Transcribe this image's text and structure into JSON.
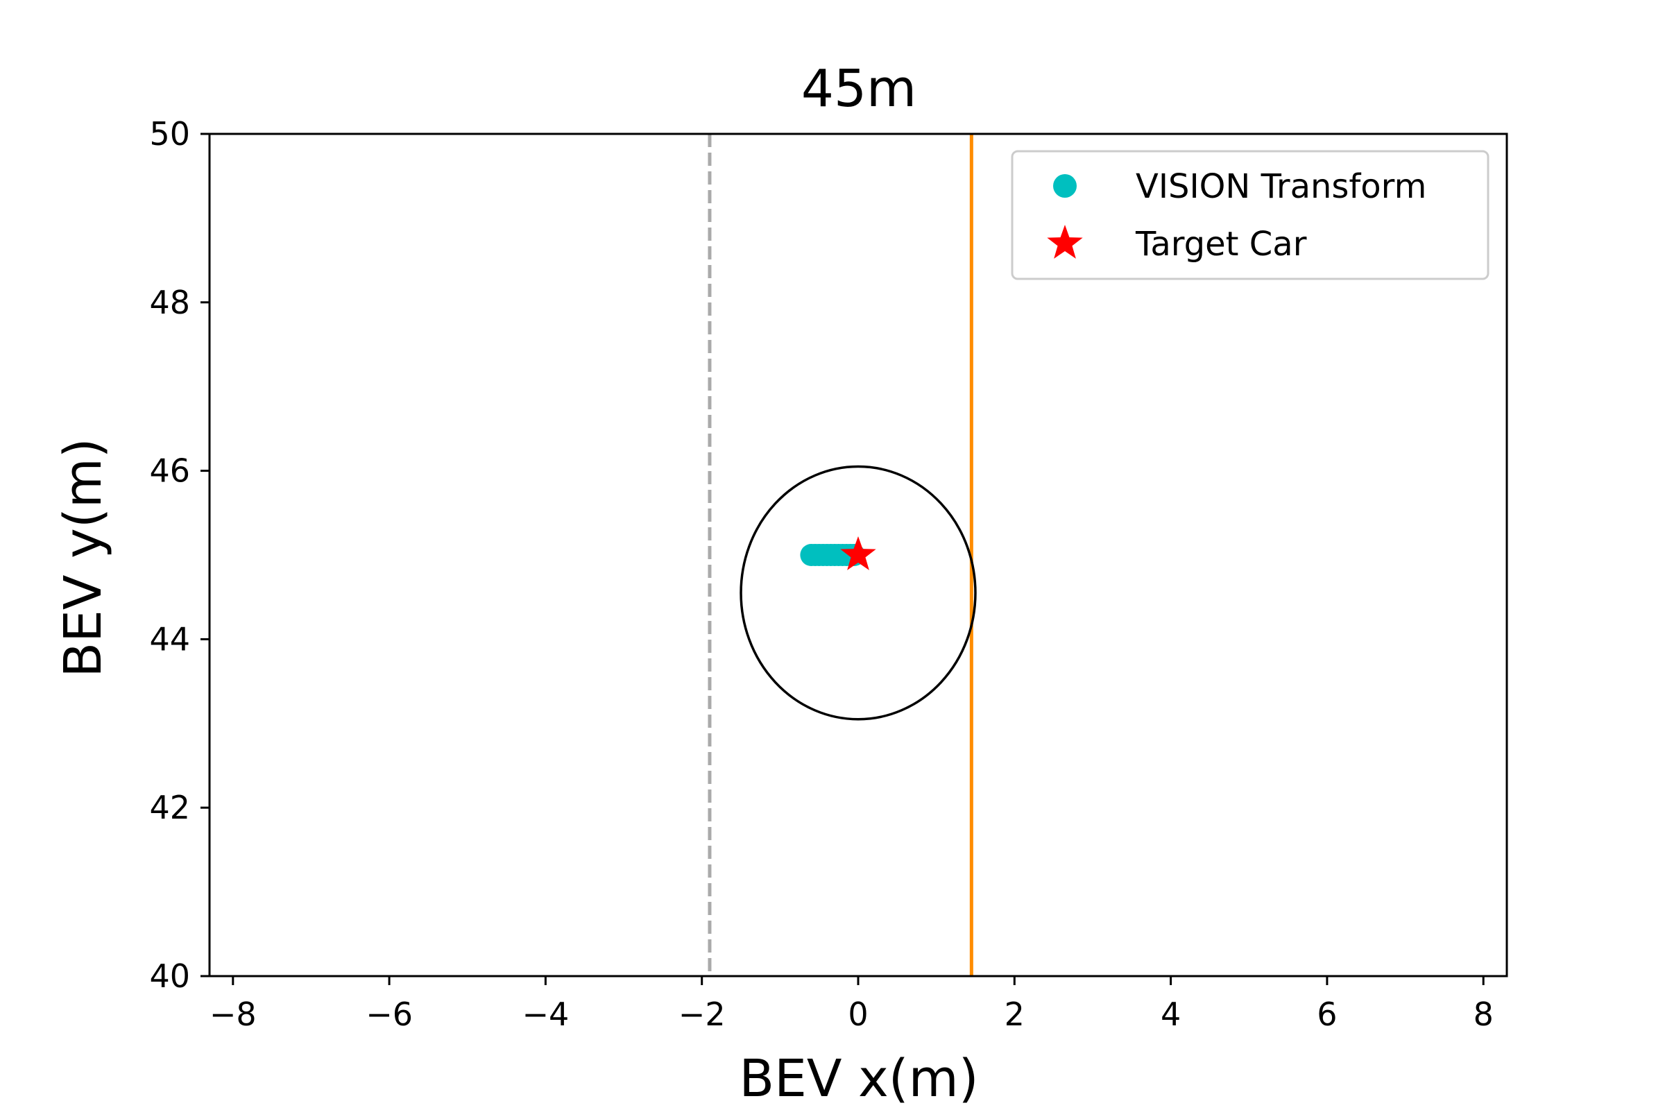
{
  "chart_data": {
    "type": "scatter",
    "title": "45m",
    "xlabel": "BEV x(m)",
    "ylabel": "BEV y(m)",
    "xlim": [
      -8.3,
      8.3
    ],
    "ylim": [
      40,
      50
    ],
    "xticks": [
      -8,
      -6,
      -4,
      -2,
      0,
      2,
      4,
      6,
      8
    ],
    "xtick_labels": [
      "−8",
      "−6",
      "−4",
      "−2",
      "0",
      "2",
      "4",
      "6",
      "8"
    ],
    "yticks": [
      40,
      42,
      44,
      46,
      48,
      50
    ],
    "ytick_labels": [
      "40",
      "42",
      "44",
      "46",
      "48",
      "50"
    ],
    "grid": false,
    "legend_position": "top-right",
    "series": [
      {
        "name": "VISION Transform",
        "marker": "circle",
        "color": "#00bfbf",
        "x": [
          -0.6,
          -0.55,
          -0.5,
          -0.45,
          -0.4,
          -0.35,
          -0.3,
          -0.25,
          -0.2,
          -0.15,
          -0.1,
          -0.05
        ],
        "y": [
          45.0,
          45.0,
          45.0,
          45.0,
          45.0,
          45.0,
          45.0,
          45.0,
          45.0,
          45.0,
          45.0,
          45.0
        ]
      },
      {
        "name": "Target Car",
        "marker": "star",
        "color": "#ff0000",
        "x": [
          0.0
        ],
        "y": [
          45.0
        ]
      }
    ],
    "reference_lines": [
      {
        "orientation": "vertical",
        "x": -1.9,
        "style": "dashed",
        "color": "#aaaaaa"
      },
      {
        "orientation": "vertical",
        "x": 1.45,
        "style": "solid",
        "color": "#ff8c00"
      }
    ],
    "ellipse": {
      "center_x": 0.0,
      "center_y": 44.55,
      "radius_x": 1.5,
      "radius_y": 1.5,
      "color": "#000000"
    }
  }
}
